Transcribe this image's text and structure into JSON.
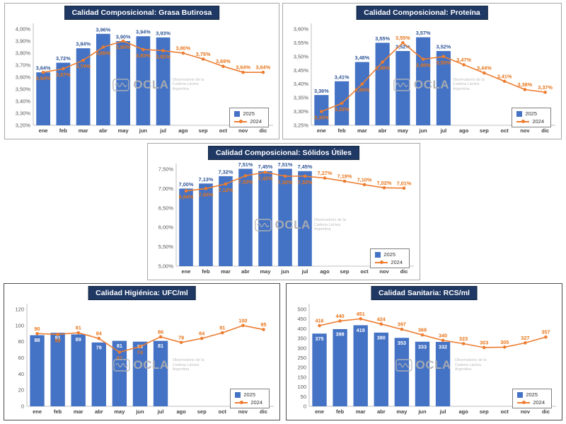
{
  "watermark": {
    "name": "OCLA",
    "subtitle_line1": "Observatorio de la Cadena Láctea",
    "subtitle_line2": "Argentina"
  },
  "colors": {
    "bar": "#4472C4",
    "bar_label": "#2F5597",
    "bar_label_inside": "#FFFFFF",
    "line": "#ED7D31",
    "line_label": "#E8751A",
    "title_bg": "#1F3864",
    "title_text": "#FFFFFF",
    "axis": "#BFBFBF"
  },
  "chart_data": [
    {
      "id": "grasa-butirosa",
      "type": "bar",
      "title": "Calidad Composicional: Grasa Butirosa",
      "categories": [
        "ene",
        "feb",
        "mar",
        "abr",
        "may",
        "jun",
        "jul",
        "ago",
        "sep",
        "oct",
        "nov",
        "dic"
      ],
      "series": [
        {
          "name": "2025",
          "type": "bar",
          "values": [
            3.64,
            3.72,
            3.84,
            3.96,
            3.9,
            3.94,
            3.93
          ]
        },
        {
          "name": "2024",
          "type": "line",
          "values": [
            3.64,
            3.67,
            3.74,
            3.85,
            3.9,
            3.83,
            3.82,
            3.8,
            3.75,
            3.69,
            3.64,
            3.64
          ]
        }
      ],
      "ylim": [
        3.2,
        4.0
      ],
      "ystep": 0.1,
      "value_format": "pct",
      "bar_label_inside": false,
      "grid": false,
      "legend_position": "bottom-right"
    },
    {
      "id": "proteina",
      "type": "bar",
      "title": "Calidad Composicional: Proteína",
      "categories": [
        "ene",
        "feb",
        "mar",
        "abr",
        "may",
        "jun",
        "jul",
        "ago",
        "sep",
        "oct",
        "nov",
        "dic"
      ],
      "series": [
        {
          "name": "2025",
          "type": "bar",
          "values": [
            3.36,
            3.41,
            3.48,
            3.55,
            3.52,
            3.57,
            3.52
          ]
        },
        {
          "name": "2024",
          "type": "line",
          "values": [
            3.3,
            3.33,
            3.4,
            3.48,
            3.55,
            3.49,
            3.5,
            3.47,
            3.44,
            3.41,
            3.38,
            3.37
          ]
        }
      ],
      "ylim": [
        3.25,
        3.6
      ],
      "ystep": 0.05,
      "value_format": "pct",
      "bar_label_inside": false,
      "grid": false,
      "legend_position": "bottom-right"
    },
    {
      "id": "solidos-utiles",
      "type": "bar",
      "title": "Calidad Composicional: Sólidos Útiles",
      "categories": [
        "ene",
        "feb",
        "mar",
        "abr",
        "may",
        "jun",
        "jul",
        "ago",
        "sep",
        "oct",
        "nov",
        "dic"
      ],
      "series": [
        {
          "name": "2025",
          "type": "bar",
          "values": [
            7.0,
            7.13,
            7.32,
            7.51,
            7.45,
            7.51,
            7.45
          ]
        },
        {
          "name": "2024",
          "type": "line",
          "values": [
            6.94,
            7.0,
            7.12,
            7.33,
            7.42,
            7.32,
            7.32,
            7.27,
            7.19,
            7.1,
            7.02,
            7.01
          ]
        }
      ],
      "ylim": [
        5.0,
        7.5
      ],
      "ystep": 0.5,
      "value_format": "pct",
      "bar_label_inside": false,
      "grid": false,
      "legend_position": "bottom-right"
    },
    {
      "id": "ufc",
      "type": "bar",
      "title": "Calidad Higiénica: UFC/ml",
      "categories": [
        "ene",
        "feb",
        "mar",
        "abr",
        "may",
        "jun",
        "jul",
        "ago",
        "sep",
        "oct",
        "nov",
        "dic"
      ],
      "series": [
        {
          "name": "2025",
          "type": "bar",
          "values": [
            88,
            91,
            89,
            79,
            81,
            80,
            81
          ]
        },
        {
          "name": "2024",
          "type": "line",
          "values": [
            90,
            89,
            91,
            84,
            67,
            74,
            86,
            79,
            84,
            91,
            100,
            95
          ]
        }
      ],
      "ylim": [
        0,
        120
      ],
      "ystep": 20,
      "value_format": "int",
      "bar_label_inside": true,
      "grid": false,
      "legend_position": "bottom-right"
    },
    {
      "id": "rcs",
      "type": "bar",
      "title": "Calidad Sanitaria: RCS/ml",
      "categories": [
        "ene",
        "feb",
        "mar",
        "abr",
        "may",
        "jun",
        "jul",
        "ago",
        "sep",
        "oct",
        "nov",
        "dic"
      ],
      "series": [
        {
          "name": "2025",
          "type": "bar",
          "values": [
            375,
            398,
            418,
            380,
            353,
            333,
            332
          ]
        },
        {
          "name": "2024",
          "type": "line",
          "values": [
            416,
            440,
            451,
            424,
            397,
            368,
            340,
            323,
            303,
            305,
            327,
            357
          ]
        }
      ],
      "ylim": [
        0,
        500
      ],
      "ystep": 50,
      "value_format": "int",
      "bar_label_inside": true,
      "grid": false,
      "legend_position": "bottom-right"
    }
  ]
}
